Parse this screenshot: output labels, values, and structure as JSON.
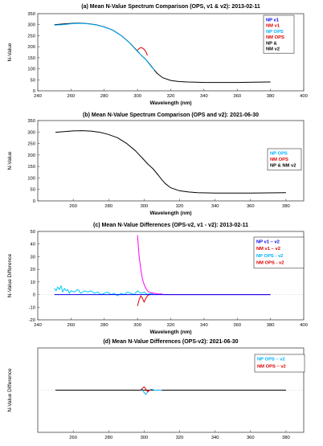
{
  "chart_data": [
    {
      "type": "line",
      "title": "(a) Mean N-Value Spectrum Comparison (OPS, v1 & v2): 2013-02-11",
      "xlabel": "Wavelength (nm)",
      "ylabel": "N-Value",
      "xlim": [
        240,
        400
      ],
      "ylim": [
        0,
        350
      ],
      "xticks": [
        240,
        260,
        280,
        300,
        320,
        340,
        360,
        380,
        400
      ],
      "yticks": [
        0,
        50,
        100,
        150,
        200,
        250,
        300,
        350
      ],
      "legend_position": "top-right",
      "legend": [
        {
          "label": "NP v1",
          "color": "#0000ee"
        },
        {
          "label": "NM v1",
          "color": "#dd0000"
        },
        {
          "label": "NP OPS",
          "color": "#00b0ff"
        },
        {
          "label": "NM OPS",
          "color": "#dd0000"
        },
        {
          "label": "NP &",
          "color": "#000000"
        },
        {
          "label": "NM v2",
          "color": "#000000"
        }
      ],
      "series": [
        {
          "name": "NP & NM v2",
          "color": "#000000",
          "x": [
            250,
            255,
            260,
            265,
            270,
            275,
            280,
            285,
            290,
            295,
            300,
            302,
            305,
            308,
            310,
            312,
            315,
            320,
            325,
            330,
            335,
            340,
            345,
            350,
            360,
            370,
            380
          ],
          "y": [
            300,
            303,
            306,
            307,
            305,
            300,
            290,
            276,
            252,
            220,
            180,
            163,
            142,
            115,
            95,
            78,
            60,
            47,
            42,
            40,
            39,
            38,
            38,
            38,
            38,
            39,
            40
          ]
        },
        {
          "name": "NP OPS",
          "color": "#00b0ff",
          "x": [
            250,
            255,
            260,
            265,
            270,
            275,
            280,
            285,
            290,
            295,
            300,
            305,
            310
          ],
          "y": [
            298,
            300,
            304,
            306,
            304,
            299,
            289,
            275,
            251,
            219,
            178,
            141,
            94
          ]
        },
        {
          "name": "NM OPS",
          "color": "#dd0000",
          "x": [
            300,
            301,
            302,
            303,
            304,
            305,
            306
          ],
          "y": [
            185,
            192,
            196,
            194,
            188,
            178,
            160
          ]
        }
      ]
    },
    {
      "type": "line",
      "title": "(b) Mean N-Value Spectrum Comparison (OPS and v2): 2021-06-30",
      "xlabel": "Wavelength (nm)",
      "ylabel": "N-Value",
      "xlim": [
        240,
        390
      ],
      "ylim": [
        0,
        350
      ],
      "xticks": [
        260,
        280,
        300,
        320,
        340,
        360,
        380
      ],
      "yticks": [
        0,
        50,
        100,
        150,
        200,
        250,
        300,
        350
      ],
      "legend_position": "top-right",
      "legend": [
        {
          "label": "NP OPS",
          "color": "#00b0ff"
        },
        {
          "label": "NM OPS",
          "color": "#dd0000"
        },
        {
          "label": "NP & NM v2",
          "color": "#000000"
        }
      ],
      "series": [
        {
          "name": "NP & NM v2",
          "color": "#000000",
          "x": [
            250,
            255,
            260,
            265,
            270,
            275,
            280,
            285,
            290,
            295,
            300,
            302,
            305,
            308,
            310,
            312,
            315,
            320,
            325,
            330,
            335,
            340,
            345,
            350,
            360,
            370,
            380
          ],
          "y": [
            299,
            302,
            305,
            306,
            304,
            299,
            289,
            275,
            251,
            219,
            178,
            161,
            140,
            112,
            92,
            75,
            57,
            44,
            39,
            36,
            35,
            34,
            34,
            34,
            34,
            35,
            36
          ]
        }
      ]
    },
    {
      "type": "line",
      "title": "(c) Mean N-Value Differences (OPS-v2, v1 - v2): 2013-02-11",
      "xlabel": "Wavelength (nm)",
      "ylabel": "N-Value Difference",
      "xlim": [
        240,
        400
      ],
      "ylim": [
        -20,
        50
      ],
      "xticks": [
        240,
        260,
        280,
        300,
        320,
        340,
        360,
        380,
        400
      ],
      "yticks": [
        -20,
        -10,
        0,
        10,
        20,
        30,
        40,
        50
      ],
      "legend_position": "top-right",
      "legend": [
        {
          "label": "NP v1 – v2",
          "color": "#0000ee"
        },
        {
          "label": "NM v1 – v2",
          "color": "#dd0000"
        },
        {
          "label": "NP OPS - v2",
          "color": "#00b0ff"
        },
        {
          "label": "NM OPS - v2",
          "color": "#dd0000"
        }
      ],
      "series": [
        {
          "name": "NP OPS - v2",
          "color": "#00c8ff",
          "x": [
            250,
            251,
            252,
            253,
            254,
            255,
            256,
            257,
            258,
            259,
            260,
            262,
            264,
            266,
            268,
            270,
            272,
            274,
            276,
            278,
            280,
            282,
            284,
            286,
            288,
            290,
            292,
            294,
            296,
            298,
            300,
            302,
            304,
            306,
            308,
            310
          ],
          "y": [
            5,
            3,
            6,
            4,
            7,
            2,
            5,
            3,
            4,
            1,
            3,
            2,
            4,
            1,
            3,
            2,
            3,
            1,
            2,
            0,
            1,
            2,
            0,
            1,
            -1,
            1,
            0,
            2,
            1,
            0,
            3,
            1,
            2,
            0,
            1,
            0
          ]
        },
        {
          "name": "magenta",
          "color": "#ff00ff",
          "x": [
            300,
            301,
            302,
            303,
            304,
            305,
            306,
            307,
            308,
            310,
            312,
            314,
            316,
            320,
            330,
            340,
            360,
            380
          ],
          "y": [
            47,
            30,
            20,
            12,
            8,
            5,
            3,
            2,
            1.5,
            1,
            0.5,
            0.5,
            0,
            0,
            0,
            0,
            0,
            0
          ]
        },
        {
          "name": "NM OPS - v2",
          "color": "#dd0000",
          "x": [
            300,
            301,
            302,
            303,
            304,
            305,
            306,
            307,
            308
          ],
          "y": [
            -9,
            -4,
            -1,
            -3,
            -6,
            -3,
            -1,
            0,
            0
          ]
        },
        {
          "name": "NP v1 – v2",
          "color": "#0000ee",
          "x": [
            250,
            260,
            270,
            280,
            290,
            300,
            310,
            320,
            340,
            360,
            380
          ],
          "y": [
            0,
            0,
            0,
            0,
            0,
            0,
            0,
            0,
            0,
            0,
            0
          ]
        }
      ]
    },
    {
      "type": "line",
      "title": "(d) Mean N-Value Differences (OPS-v2): 2021-06-30",
      "xlabel": "Wavelength (nm)",
      "ylabel": "N-Value Difference",
      "xlim": [
        240,
        390
      ],
      "ylim": [
        -50,
        50
      ],
      "xticks": [
        260,
        280,
        300,
        320,
        340,
        360,
        380
      ],
      "yticks": [],
      "legend_position": "top-right",
      "legend": [
        {
          "label": "NP OPS – v2",
          "color": "#00b0ff"
        },
        {
          "label": "NM OPS – v2",
          "color": "#dd0000"
        }
      ],
      "series": [
        {
          "name": "v2 baseline",
          "color": "#000000",
          "x": [
            250,
            270,
            290,
            310,
            330,
            350,
            370,
            380
          ],
          "y": [
            0,
            0,
            0,
            0,
            0,
            0,
            0,
            0
          ]
        },
        {
          "name": "NP OPS – v2",
          "color": "#00b0ff",
          "x": [
            298,
            299,
            300,
            301,
            302,
            303,
            304,
            306,
            308,
            310
          ],
          "y": [
            0,
            1,
            -3,
            -5,
            -2,
            0,
            1,
            0,
            0,
            0
          ]
        },
        {
          "name": "NM OPS – v2",
          "color": "#dd0000",
          "x": [
            298,
            299,
            300,
            301,
            302,
            303,
            304
          ],
          "y": [
            0,
            2,
            4,
            1,
            -2,
            0,
            0
          ]
        }
      ]
    }
  ]
}
